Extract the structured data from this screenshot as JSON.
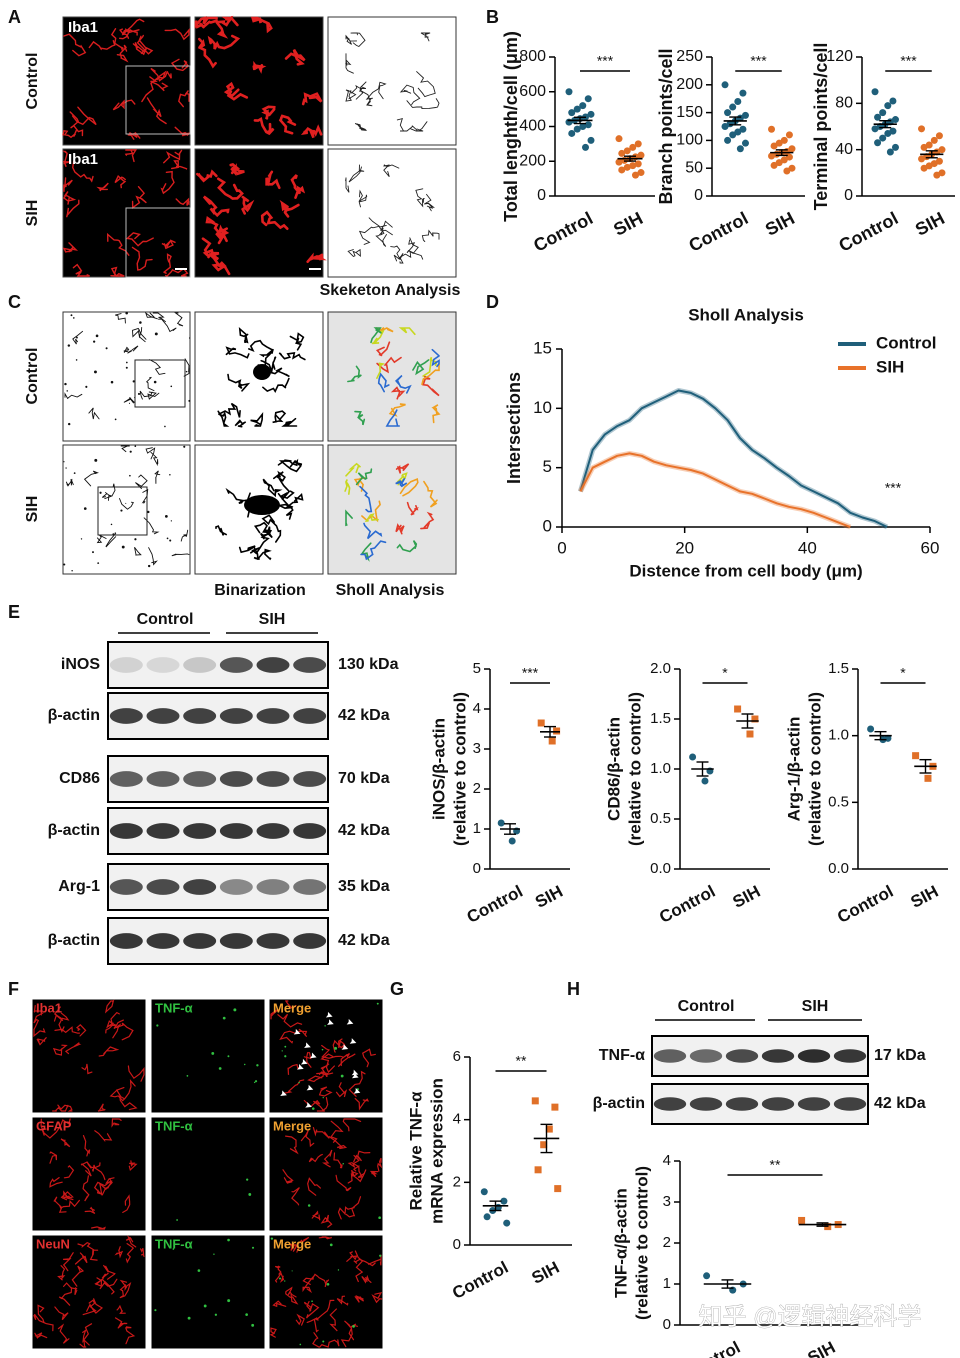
{
  "panels": {
    "A": {
      "letter": "A",
      "rows": [
        "Control",
        "SIH"
      ],
      "image_labels": [
        "Iba1",
        "Iba1"
      ],
      "caption": "Skeketon Analysis"
    },
    "B": {
      "letter": "B"
    },
    "C": {
      "letter": "C",
      "rows": [
        "Control",
        "SIH"
      ],
      "captions": [
        "Binarization",
        "Sholl Analysis"
      ]
    },
    "D": {
      "letter": "D"
    },
    "E": {
      "letter": "E",
      "groups": [
        "Control",
        "SIH"
      ],
      "blots": [
        {
          "protein": "iNOS",
          "size": "130 kDa"
        },
        {
          "protein": "β-actin",
          "size": "42 kDa"
        },
        {
          "protein": "CD86",
          "size": "70 kDa"
        },
        {
          "protein": "β-actin",
          "size": "42 kDa"
        },
        {
          "protein": "Arg-1",
          "size": "35 kDa"
        },
        {
          "protein": "β-actin",
          "size": "42 kDa"
        }
      ]
    },
    "F": {
      "letter": "F",
      "rows": [
        [
          "Iba1",
          "TNF-α",
          "Merge"
        ],
        [
          "GFAP",
          "TNF-α",
          "Merge"
        ],
        [
          "NeuN",
          "TNF-α",
          "Merge"
        ]
      ]
    },
    "G": {
      "letter": "G"
    },
    "H": {
      "letter": "H",
      "groups": [
        "Control",
        "SIH"
      ],
      "blots": [
        {
          "protein": "TNF-α",
          "size": "17 kDa"
        },
        {
          "protein": "β-actin",
          "size": "42 kDa"
        }
      ]
    },
    "watermark": "知乎 @逻辑神经科学"
  },
  "chart_data": [
    {
      "type": "dotplot",
      "ylabel": [
        "Total lenghth/cell (μm)"
      ],
      "ylim": [
        0,
        800
      ],
      "yticks": [
        0,
        200,
        400,
        600,
        800
      ],
      "annotation": "***",
      "series": [
        {
          "name": "Control",
          "color": "#1f5f7a",
          "marker": "circle",
          "values": [
            600,
            560,
            520,
            500,
            480,
            470,
            455,
            445,
            435,
            425,
            410,
            400,
            385,
            360,
            320,
            280
          ],
          "mean": 435,
          "sem": 18
        },
        {
          "name": "SIH",
          "color": "#e07028",
          "marker": "circle",
          "values": [
            330,
            300,
            280,
            260,
            245,
            235,
            225,
            215,
            205,
            195,
            185,
            175,
            165,
            150,
            135,
            120
          ],
          "mean": 215,
          "sem": 14
        }
      ]
    },
    {
      "type": "dotplot",
      "ylabel": [
        "Branch points/cell"
      ],
      "ylim": [
        0,
        250
      ],
      "yticks": [
        0,
        50,
        100,
        150,
        200,
        250
      ],
      "annotation": "***",
      "series": [
        {
          "name": "Control",
          "color": "#1f5f7a",
          "marker": "circle",
          "values": [
            200,
            185,
            170,
            160,
            150,
            145,
            140,
            135,
            130,
            125,
            120,
            115,
            110,
            100,
            95,
            85
          ],
          "mean": 135,
          "sem": 7
        },
        {
          "name": "SIH",
          "color": "#e07028",
          "marker": "circle",
          "values": [
            120,
            110,
            100,
            95,
            90,
            85,
            80,
            78,
            75,
            72,
            70,
            65,
            60,
            55,
            50,
            45
          ],
          "mean": 78,
          "sem": 5
        }
      ]
    },
    {
      "type": "dotplot",
      "ylabel": [
        "Terminal points/cell"
      ],
      "ylim": [
        0,
        120
      ],
      "yticks": [
        0,
        40,
        80,
        120
      ],
      "annotation": "***",
      "series": [
        {
          "name": "Control",
          "color": "#1f5f7a",
          "marker": "circle",
          "values": [
            90,
            82,
            78,
            72,
            68,
            66,
            64,
            62,
            60,
            58,
            56,
            54,
            50,
            46,
            42,
            38
          ],
          "mean": 62,
          "sem": 3
        },
        {
          "name": "SIH",
          "color": "#e07028",
          "marker": "circle",
          "values": [
            58,
            52,
            48,
            44,
            42,
            40,
            38,
            36,
            34,
            32,
            30,
            28,
            26,
            24,
            20,
            18
          ],
          "mean": 36,
          "sem": 3
        }
      ]
    },
    {
      "type": "line",
      "title": "Sholl Analysis",
      "xlabel": "Distence from cell body (μm)",
      "ylabel": "Intersections",
      "annotation": "***",
      "legend": "top-right",
      "xlim": [
        0,
        60
      ],
      "xticks": [
        0,
        20,
        40,
        60
      ],
      "ylim": [
        0,
        15
      ],
      "yticks": [
        0,
        5,
        10,
        15
      ],
      "x": [
        3,
        5,
        7,
        9,
        11,
        13,
        15,
        17,
        19,
        21,
        23,
        25,
        27,
        29,
        31,
        33,
        35,
        37,
        39,
        41,
        43,
        45,
        47,
        49,
        51,
        53
      ],
      "series": [
        {
          "name": "Control",
          "color": "#1f5f7a",
          "values": [
            3,
            6.5,
            7.8,
            8.5,
            9,
            10,
            10.5,
            11,
            11.5,
            11.3,
            10.8,
            10,
            9,
            7.5,
            6.5,
            5.8,
            5,
            4.3,
            3.5,
            3,
            2.5,
            2,
            1.2,
            0.8,
            0.5,
            0
          ]
        },
        {
          "name": "SIH",
          "color": "#e8722a",
          "values": [
            3,
            5,
            5.5,
            6,
            6.2,
            6,
            5.5,
            5.2,
            5,
            4.8,
            4.5,
            4,
            3.5,
            3,
            2.8,
            2.4,
            2,
            1.7,
            1.5,
            1.2,
            0.8,
            0.4,
            0,
            null,
            null,
            null
          ]
        }
      ]
    },
    {
      "type": "dotplot",
      "ylabel": [
        "iNOS/β-actin",
        "(relative to control)"
      ],
      "ylim": [
        0,
        5
      ],
      "yticks": [
        0,
        1,
        2,
        3,
        4,
        5
      ],
      "annotation": "***",
      "series": [
        {
          "name": "Control",
          "color": "#1f5f7a",
          "marker": "circle",
          "values": [
            1.15,
            0.95,
            0.7
          ],
          "mean": 1,
          "sem": 0.13
        },
        {
          "name": "SIH",
          "color": "#e07028",
          "marker": "square",
          "values": [
            3.65,
            3.45,
            3.2
          ],
          "mean": 3.43,
          "sem": 0.13
        }
      ]
    },
    {
      "type": "dotplot",
      "ylabel": [
        "CD86/β-actin",
        "(relative to control)"
      ],
      "ylim": [
        0,
        2
      ],
      "yticks": [
        {
          "value": 0,
          "label": "0.0"
        },
        0.5,
        {
          "value": 1,
          "label": "1.0"
        },
        1.5,
        {
          "value": 2,
          "label": "2.0"
        }
      ],
      "annotation": "*",
      "series": [
        {
          "name": "Control",
          "color": "#1f5f7a",
          "marker": "circle",
          "values": [
            1.12,
            0.98,
            0.88
          ],
          "mean": 1,
          "sem": 0.07
        },
        {
          "name": "SIH",
          "color": "#e07028",
          "marker": "square",
          "values": [
            1.6,
            1.5,
            1.35
          ],
          "mean": 1.48,
          "sem": 0.07
        }
      ]
    },
    {
      "type": "dotplot",
      "ylabel": [
        "Arg-1/β-actin",
        "(relative to control)"
      ],
      "ylim": [
        0,
        1.5
      ],
      "yticks": [
        {
          "value": 0,
          "label": "0.0"
        },
        0.5,
        {
          "value": 1,
          "label": "1.0"
        },
        1.5
      ],
      "annotation": "*",
      "series": [
        {
          "name": "Control",
          "color": "#1f5f7a",
          "marker": "circle",
          "values": [
            1.05,
            0.98,
            0.97
          ],
          "mean": 1,
          "sem": 0.03
        },
        {
          "name": "SIH",
          "color": "#e07028",
          "marker": "square",
          "values": [
            0.85,
            0.77,
            0.68
          ],
          "mean": 0.77,
          "sem": 0.05
        }
      ]
    },
    {
      "type": "dotplot",
      "ylabel": [
        "Relative TNF-α",
        "mRNA expression"
      ],
      "ylim": [
        0,
        6
      ],
      "yticks": [
        0,
        2,
        4,
        6
      ],
      "annotation": "**",
      "series": [
        {
          "name": "Control",
          "color": "#1f5f7a",
          "marker": "circle",
          "values": [
            1.7,
            1.4,
            1.2,
            1.1,
            0.9,
            0.7
          ],
          "mean": 1.25,
          "sem": 0.15
        },
        {
          "name": "SIH",
          "color": "#e07028",
          "marker": "square",
          "values": [
            4.6,
            4.4,
            3.7,
            3.2,
            2.4,
            1.8
          ],
          "mean": 3.4,
          "sem": 0.45
        }
      ]
    },
    {
      "type": "dotplot",
      "ylabel": [
        "TNF-α/β-actin",
        "(relative to control)"
      ],
      "ylim": [
        0,
        4
      ],
      "yticks": [
        0,
        1,
        2,
        3,
        4
      ],
      "annotation": "**",
      "series": [
        {
          "name": "Control",
          "color": "#1f5f7a",
          "marker": "circle",
          "values": [
            1.2,
            1,
            0.85
          ],
          "mean": 1,
          "sem": 0.1
        },
        {
          "name": "SIH",
          "color": "#e07028",
          "marker": "square",
          "values": [
            2.55,
            2.45,
            2.4
          ],
          "mean": 2.45,
          "sem": 0.04
        }
      ]
    }
  ]
}
